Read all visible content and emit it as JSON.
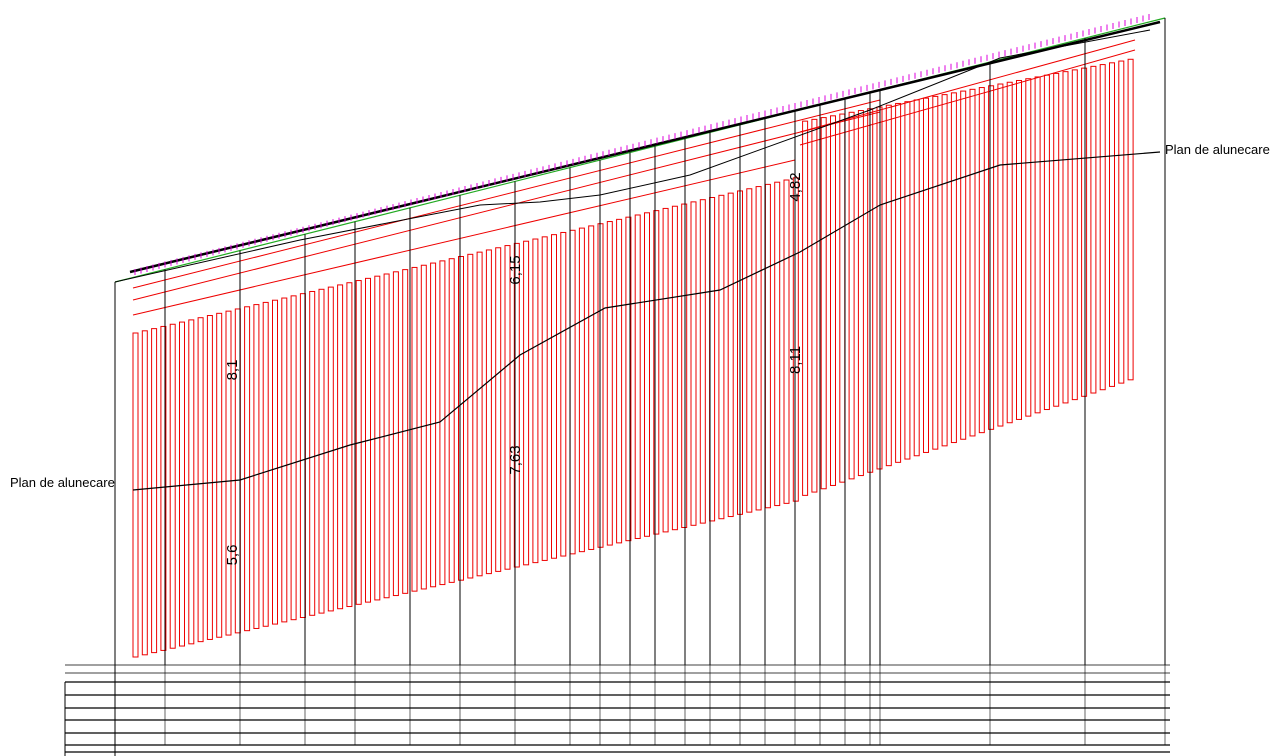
{
  "annotations": [
    {
      "text": "Plan de alunecare"
    },
    {
      "text": "Plan de alunecare"
    }
  ],
  "dimensions": [
    "8,1",
    "5,6",
    "6,15",
    "7,63",
    "4,82",
    "8,11"
  ]
}
